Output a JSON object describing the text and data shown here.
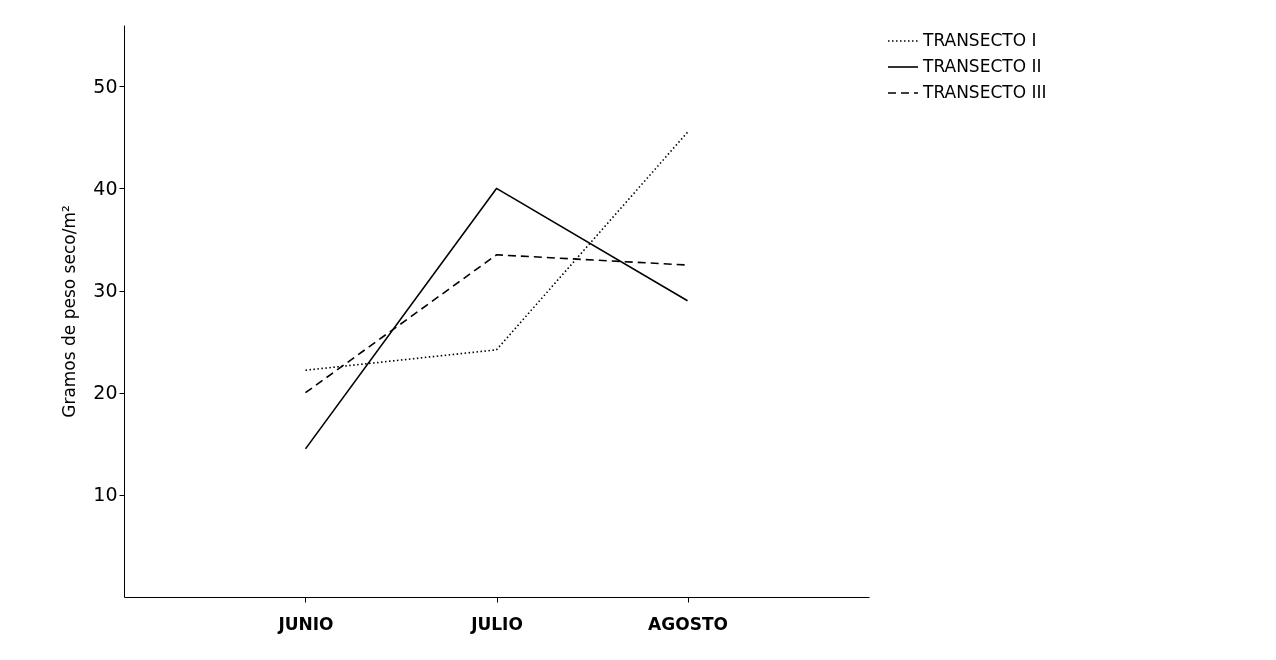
{
  "chart_data": {
    "type": "line",
    "ylabel": "Gramos de peso seco/m²",
    "categories": [
      "JUNIO",
      "JULIO",
      "AGOSTO"
    ],
    "series": [
      {
        "name": "TRANSECTO I",
        "color": "#000000",
        "line_style": "dotted",
        "values": [
          22.2,
          24.2,
          45.5
        ]
      },
      {
        "name": "TRANSECTO II",
        "color": "#000000",
        "line_style": "solid",
        "values": [
          14.5,
          40,
          29
        ]
      },
      {
        "name": "TRANSECTO III",
        "color": "#000000",
        "line_style": "dashed",
        "values": [
          20,
          33.5,
          32.5
        ]
      }
    ],
    "ylim": [
      0,
      56
    ],
    "yticks": [
      10,
      20,
      30,
      40,
      50
    ],
    "grid": false,
    "legend": "top right",
    "marker": "none"
  }
}
